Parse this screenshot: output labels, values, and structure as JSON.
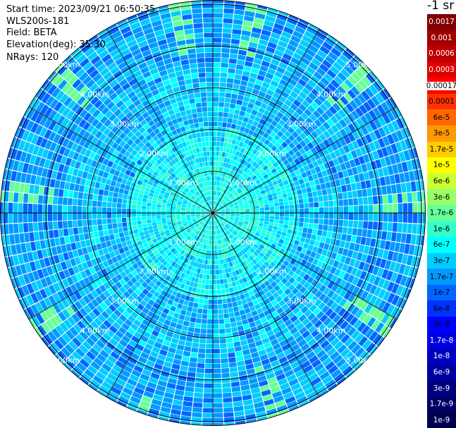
{
  "info": {
    "start_time": "Start time: 2023/09/21 06:50:35",
    "instrument": "WLS200s-181",
    "field": "Field: BETA",
    "elevation": "Elevation(deg): 35.30",
    "nrays": "NRays: 120"
  },
  "radar": {
    "ring_labels": [
      "1.00km",
      "2.00km",
      "3.00km",
      "4.00km",
      "5.00km"
    ],
    "ring_range_km": [
      1,
      2,
      3,
      4,
      5
    ],
    "max_range_km": 5.1,
    "ray_count": 120,
    "spoke_count": 12
  },
  "colorbar": {
    "title": "-1 sr",
    "levels": [
      {
        "label": "0.0017",
        "color": "#800000"
      },
      {
        "label": "0.001",
        "color": "#a00000"
      },
      {
        "label": "0.0006",
        "color": "#c00000"
      },
      {
        "label": "0.0003",
        "color": "#e00000"
      },
      {
        "label": "0.00017",
        "color": "#ff0000"
      },
      {
        "label": "0.0001",
        "color": "#ff3300"
      },
      {
        "label": "6e-5",
        "color": "#ff6600"
      },
      {
        "label": "3e-5",
        "color": "#ff9900"
      },
      {
        "label": "1.7e-5",
        "color": "#ffcc00"
      },
      {
        "label": "1e-5",
        "color": "#ffff00"
      },
      {
        "label": "6e-6",
        "color": "#ccff33"
      },
      {
        "label": "3e-6",
        "color": "#99ff66"
      },
      {
        "label": "1.7e-6",
        "color": "#66ff99"
      },
      {
        "label": "1e-6",
        "color": "#33ffcc"
      },
      {
        "label": "6e-7",
        "color": "#00ffff"
      },
      {
        "label": "3e-7",
        "color": "#00ccff"
      },
      {
        "label": "1.7e-7",
        "color": "#0099ff"
      },
      {
        "label": "1e-7",
        "color": "#0066ff"
      },
      {
        "label": "6e-8",
        "color": "#0033ff"
      },
      {
        "label": "3e-8",
        "color": "#0000ff"
      },
      {
        "label": "1.7e-8",
        "color": "#0000e0"
      },
      {
        "label": "1e-8",
        "color": "#0000c0"
      },
      {
        "label": "6e-9",
        "color": "#0000a0"
      },
      {
        "label": "3e-9",
        "color": "#000080"
      },
      {
        "label": "1.7e-9",
        "color": "#000066"
      },
      {
        "label": "1e-9",
        "color": "#00004d"
      }
    ]
  }
}
